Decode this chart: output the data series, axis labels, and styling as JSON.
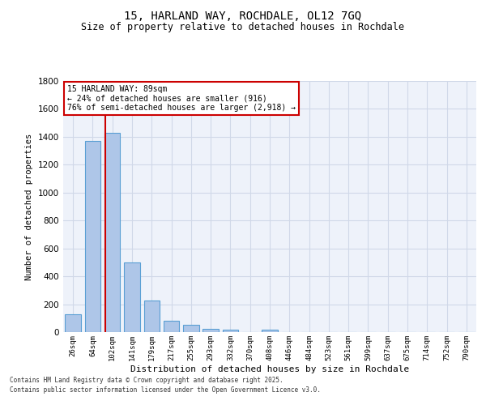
{
  "title_line1": "15, HARLAND WAY, ROCHDALE, OL12 7GQ",
  "title_line2": "Size of property relative to detached houses in Rochdale",
  "xlabel": "Distribution of detached houses by size in Rochdale",
  "ylabel": "Number of detached properties",
  "categories": [
    "26sqm",
    "64sqm",
    "102sqm",
    "141sqm",
    "179sqm",
    "217sqm",
    "255sqm",
    "293sqm",
    "332sqm",
    "370sqm",
    "408sqm",
    "446sqm",
    "484sqm",
    "523sqm",
    "561sqm",
    "599sqm",
    "637sqm",
    "675sqm",
    "714sqm",
    "752sqm",
    "790sqm"
  ],
  "values": [
    130,
    1370,
    1430,
    500,
    225,
    80,
    50,
    25,
    20,
    0,
    15,
    0,
    0,
    0,
    0,
    0,
    0,
    0,
    0,
    0,
    0
  ],
  "bar_color": "#aec6e8",
  "bar_edge_color": "#5a9fd4",
  "grid_color": "#d0d8e8",
  "background_color": "#eef2fa",
  "vline_color": "#cc0000",
  "vline_pos": 1.65,
  "annotation_text": "15 HARLAND WAY: 89sqm\n← 24% of detached houses are smaller (916)\n76% of semi-detached houses are larger (2,918) →",
  "annotation_box_color": "#cc0000",
  "ylim": [
    0,
    1800
  ],
  "yticks": [
    0,
    200,
    400,
    600,
    800,
    1000,
    1200,
    1400,
    1600,
    1800
  ],
  "footnote1": "Contains HM Land Registry data © Crown copyright and database right 2025.",
  "footnote2": "Contains public sector information licensed under the Open Government Licence v3.0."
}
